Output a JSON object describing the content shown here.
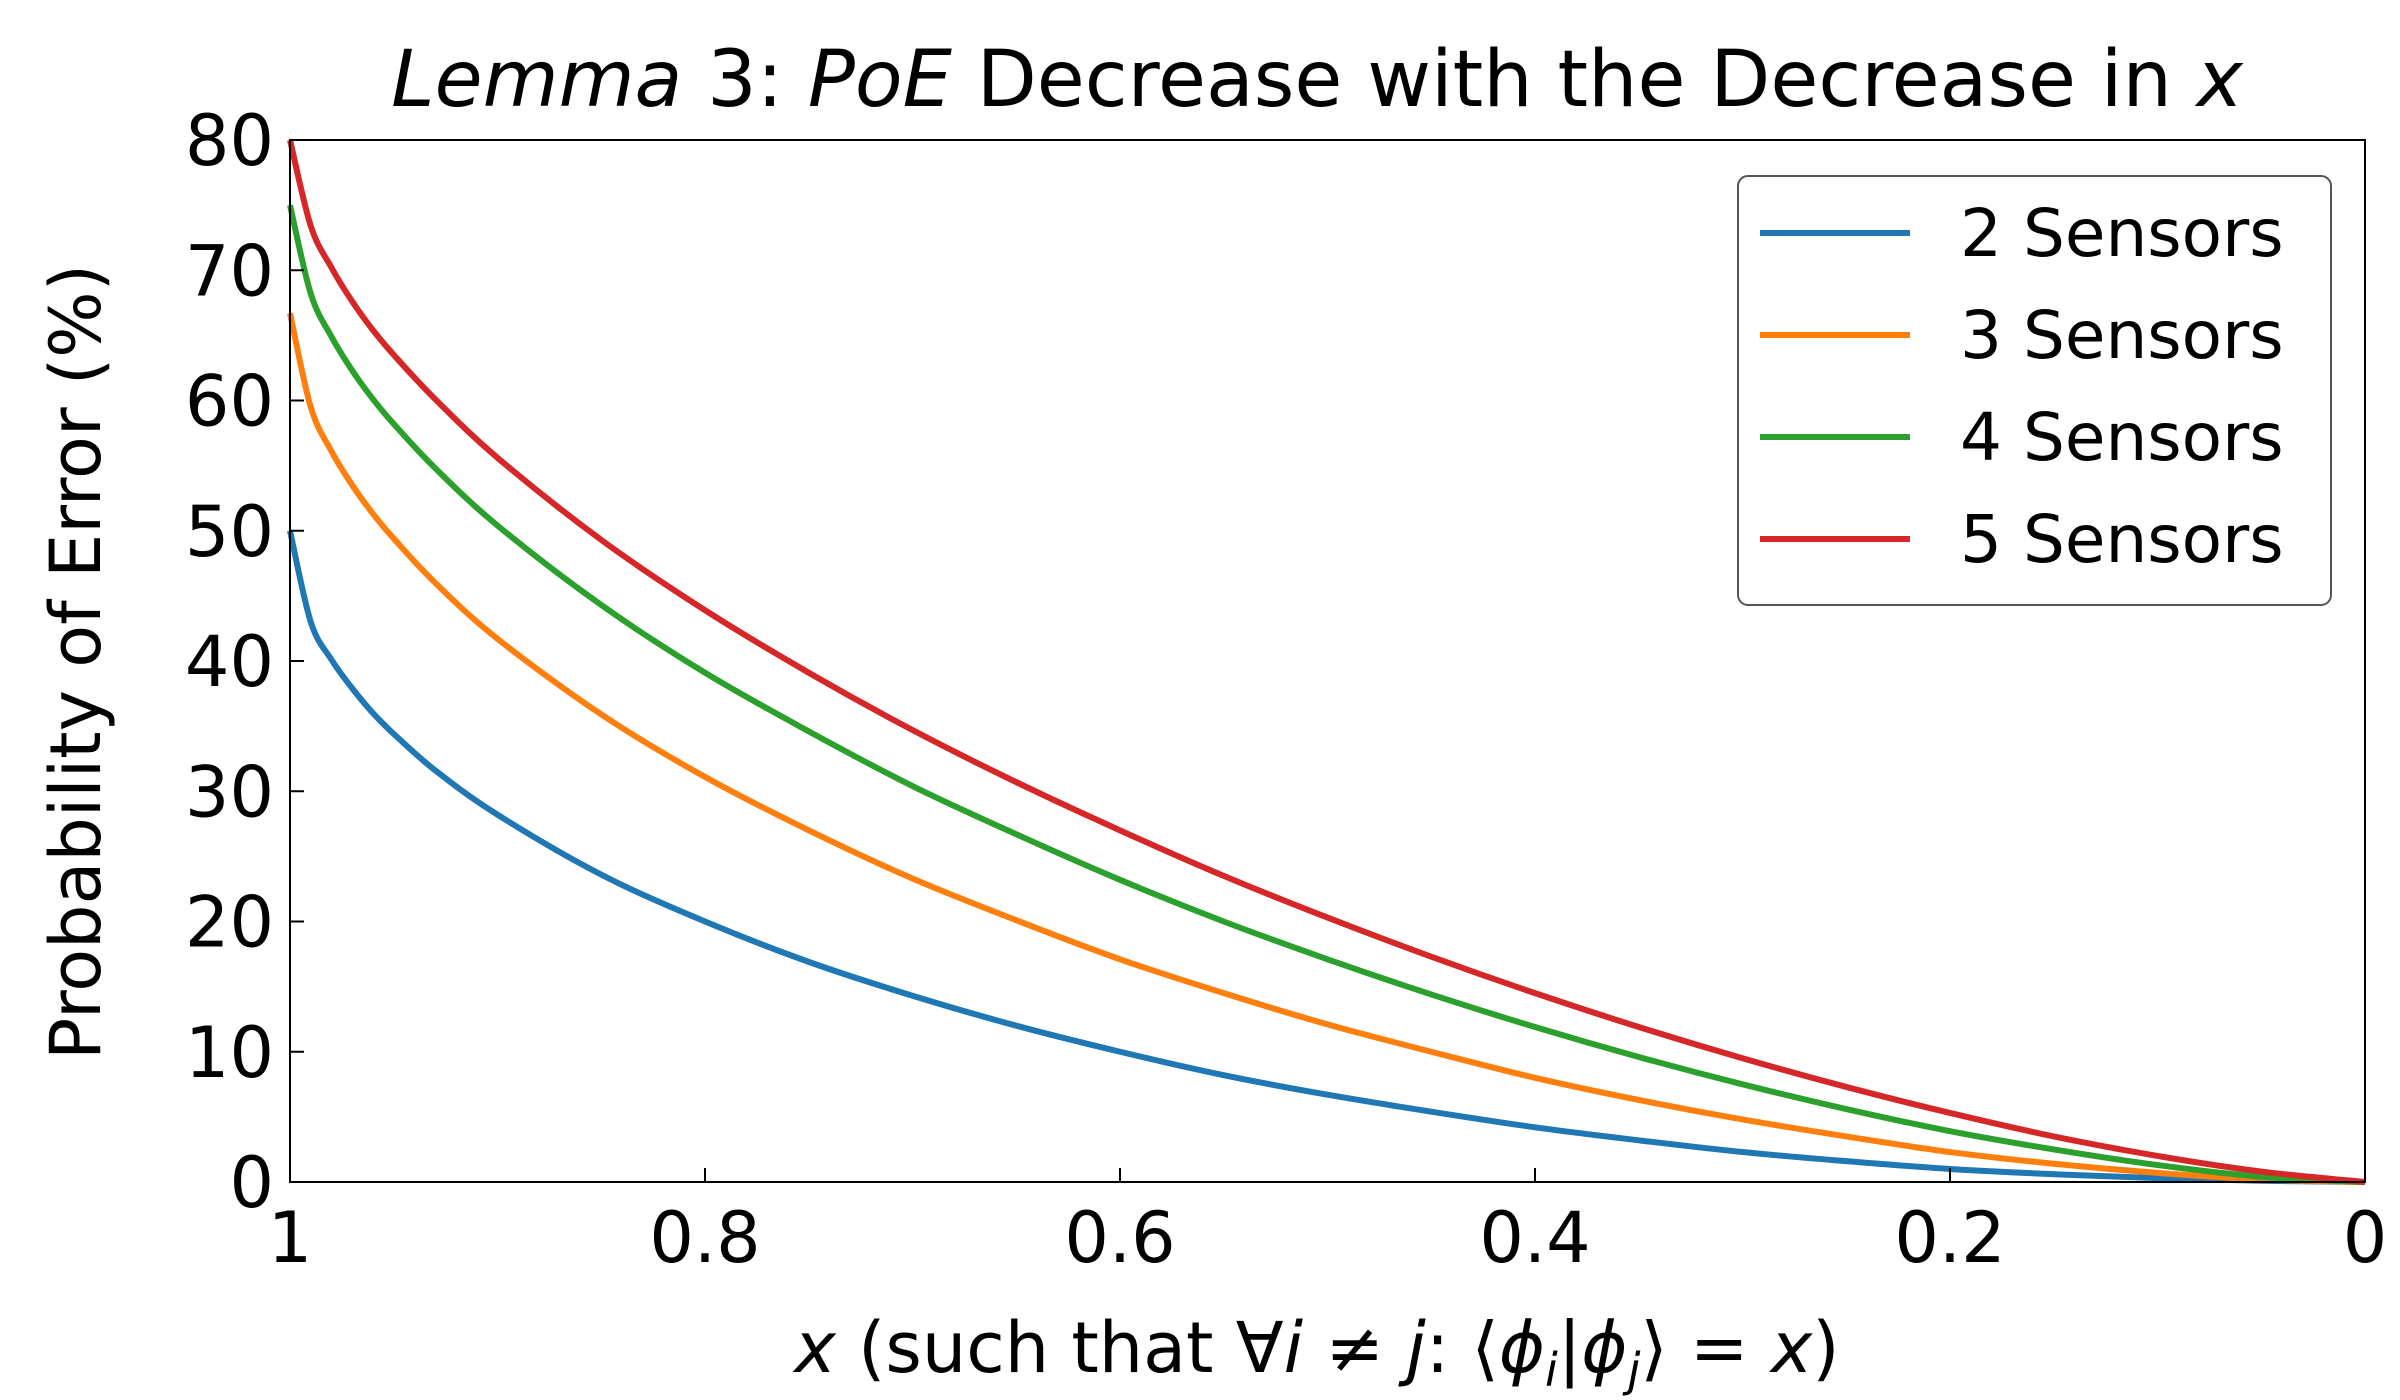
{
  "chart_data": {
    "type": "line",
    "title": {
      "part_lemma": "Lemma",
      "part_num": " 3: ",
      "part_poe": "PoE",
      "part_rest": " Decrease with the Decrease in ",
      "part_x": "x"
    },
    "xlabel": {
      "var": "x",
      "open": " (such that ",
      "forall": "∀",
      "i": "i",
      "neq": " ≠ ",
      "j": "j",
      "colon": ": ⟨",
      "phi1": "ϕ",
      "sub_i": "i",
      "bar": "|",
      "phi2": "ϕ",
      "sub_j": "j",
      "close": "⟩ = ",
      "x2": "x",
      "paren": ")"
    },
    "ylabel": "Probability of Error (%)",
    "xlim": [
      1,
      0
    ],
    "ylim": [
      0,
      80
    ],
    "x_reversed": true,
    "xticks": [
      {
        "value": 1,
        "label": "1"
      },
      {
        "value": 0.8,
        "label": "0.8"
      },
      {
        "value": 0.6,
        "label": "0.6"
      },
      {
        "value": 0.4,
        "label": "0.4"
      },
      {
        "value": 0.2,
        "label": "0.2"
      },
      {
        "value": 0,
        "label": "0"
      }
    ],
    "yticks": [
      {
        "value": 0,
        "label": "0"
      },
      {
        "value": 10,
        "label": "10"
      },
      {
        "value": 20,
        "label": "20"
      },
      {
        "value": 30,
        "label": "30"
      },
      {
        "value": 40,
        "label": "40"
      },
      {
        "value": 50,
        "label": "50"
      },
      {
        "value": 60,
        "label": "60"
      },
      {
        "value": 70,
        "label": "70"
      },
      {
        "value": 80,
        "label": "80"
      }
    ],
    "grid": false,
    "legend_position": "top-right",
    "x": [
      1.0,
      0.99,
      0.98,
      0.97,
      0.96,
      0.95,
      0.93,
      0.9,
      0.85,
      0.8,
      0.75,
      0.7,
      0.65,
      0.6,
      0.55,
      0.5,
      0.45,
      0.4,
      0.35,
      0.3,
      0.25,
      0.2,
      0.15,
      0.1,
      0.05,
      0.0
    ],
    "series": [
      {
        "name": "2 Sensors",
        "color": "#1f77b4",
        "values": [
          50.0,
          43.0,
          40.1,
          37.9,
          36.0,
          34.4,
          31.6,
          28.2,
          23.6,
          20.0,
          16.9,
          14.3,
          12.0,
          10.0,
          8.2,
          6.7,
          5.4,
          4.2,
          3.2,
          2.3,
          1.6,
          1.0,
          0.6,
          0.3,
          0.1,
          0.0
        ]
      },
      {
        "name": "3 Sensors",
        "color": "#ff7f0e",
        "values": [
          66.7,
          59.5,
          56.1,
          53.5,
          51.3,
          49.4,
          46.0,
          41.7,
          35.9,
          31.1,
          27.0,
          23.3,
          20.1,
          17.1,
          14.5,
          12.1,
          10.0,
          8.0,
          6.3,
          4.8,
          3.5,
          2.3,
          1.4,
          0.7,
          0.2,
          0.0
        ]
      },
      {
        "name": "4 Sensors",
        "color": "#2ca02c",
        "values": [
          75.0,
          68.2,
          64.9,
          62.3,
          60.1,
          58.2,
          54.8,
          50.4,
          44.3,
          39.1,
          34.6,
          30.4,
          26.7,
          23.2,
          20.0,
          17.1,
          14.4,
          11.9,
          9.6,
          7.5,
          5.6,
          3.9,
          2.5,
          1.3,
          0.4,
          0.0
        ]
      },
      {
        "name": "5 Sensors",
        "color": "#d62728",
        "values": [
          80.0,
          73.4,
          70.2,
          67.6,
          65.4,
          63.5,
          60.1,
          55.6,
          49.3,
          43.9,
          39.1,
          34.7,
          30.7,
          27.0,
          23.5,
          20.3,
          17.3,
          14.5,
          11.9,
          9.5,
          7.3,
          5.3,
          3.5,
          2.0,
          0.8,
          0.0
        ]
      }
    ]
  }
}
